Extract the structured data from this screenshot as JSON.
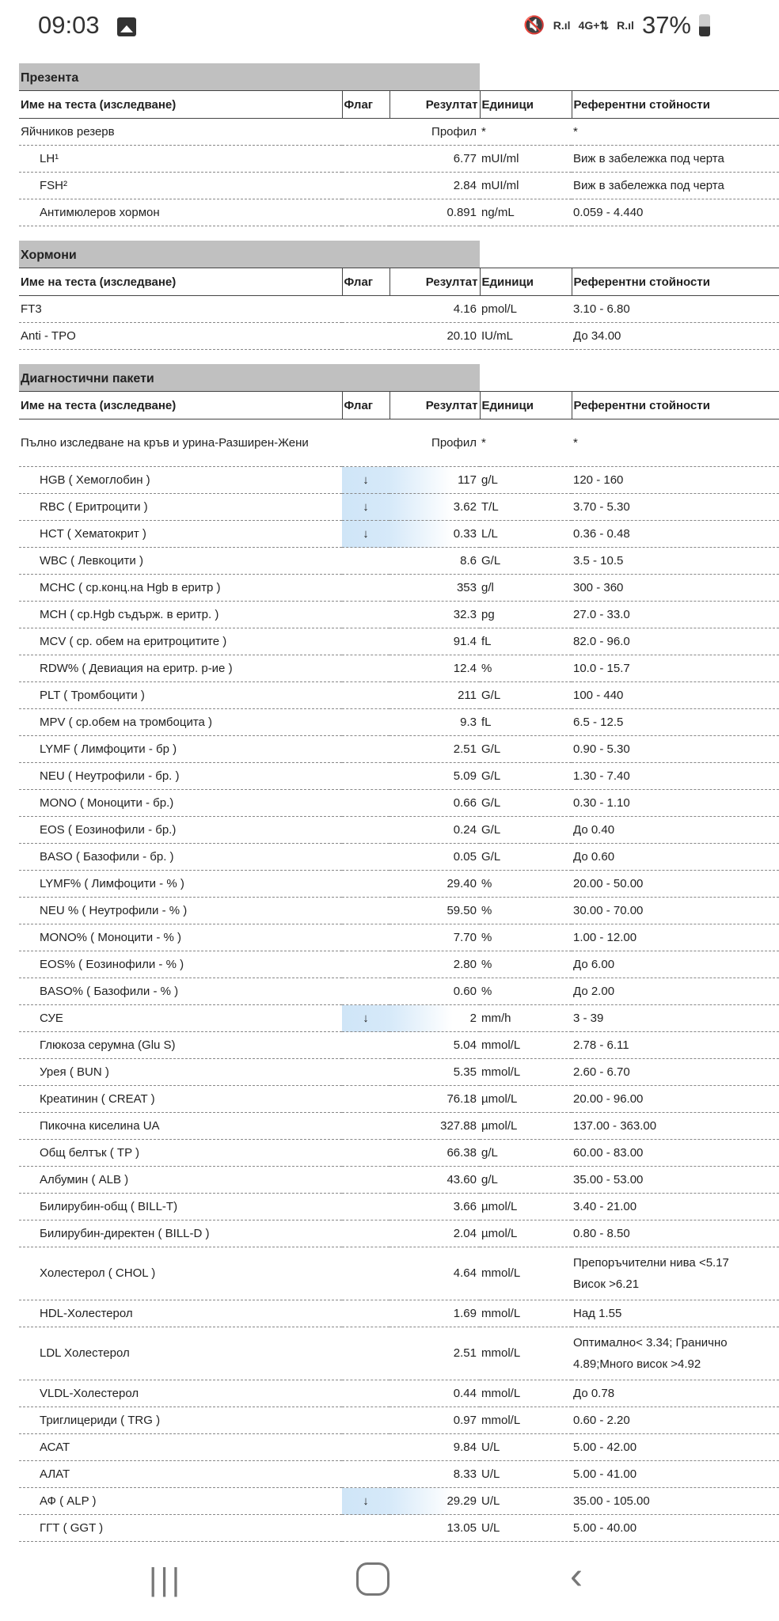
{
  "status_bar": {
    "time": "09:03",
    "battery": "37%",
    "network": "4G+",
    "signal_label": "R"
  },
  "columns": {
    "name": "Име на теста (изследване)",
    "flag": "Флаг",
    "result": "Резултат",
    "units": "Единици",
    "ref": "Референтни стойности"
  },
  "sections": [
    {
      "title": "Презента",
      "rows": [
        {
          "name": "Яйчников резерв",
          "flag": "",
          "result": "Профил",
          "units": "*",
          "ref": "*",
          "indent": false
        },
        {
          "name": "LH¹",
          "flag": "",
          "result": "6.77",
          "units": "mUI/ml",
          "ref": "Виж в забележка под черта",
          "indent": true
        },
        {
          "name": "FSH²",
          "flag": "",
          "result": "2.84",
          "units": "mUI/ml",
          "ref": "Виж в забележка под черта",
          "indent": true
        },
        {
          "name": "Антимюлеров хормон",
          "flag": "",
          "result": "0.891",
          "units": "ng/mL",
          "ref": "0.059 - 4.440",
          "indent": true
        }
      ]
    },
    {
      "title": "Хормони",
      "rows": [
        {
          "name": "FT3",
          "flag": "",
          "result": "4.16",
          "units": "pmol/L",
          "ref": "3.10 - 6.80",
          "indent": false
        },
        {
          "name": "Anti - TPO",
          "flag": "",
          "result": "20.10",
          "units": "IU/mL",
          "ref": "До 34.00",
          "indent": false
        }
      ]
    },
    {
      "title": "Диагностични пакети",
      "rows": [
        {
          "name": "Пълно изследване на кръв и урина-Разширен-Жени",
          "flag": "",
          "result": "Профил",
          "units": "*",
          "ref": "*",
          "indent": false
        },
        {
          "name": "HGB ( Хемоглобин )",
          "flag": "↓",
          "result": "117",
          "units": "g/L",
          "ref": "120 - 160",
          "indent": true
        },
        {
          "name": "RBC ( Еритроцити )",
          "flag": "↓",
          "result": "3.62",
          "units": "T/L",
          "ref": "3.70 - 5.30",
          "indent": true
        },
        {
          "name": "HCT ( Хематокрит )",
          "flag": "↓",
          "result": "0.33",
          "units": "L/L",
          "ref": "0.36 - 0.48",
          "indent": true
        },
        {
          "name": "WBC ( Левкоцити )",
          "flag": "",
          "result": "8.6",
          "units": "G/L",
          "ref": "3.5 - 10.5",
          "indent": true
        },
        {
          "name": "MCHC ( ср.конц.на Hgb в еритр )",
          "flag": "",
          "result": "353",
          "units": "g/l",
          "ref": "300 - 360",
          "indent": true
        },
        {
          "name": "MCH ( ср.Hgb съдърж. в еритр. )",
          "flag": "",
          "result": "32.3",
          "units": "pg",
          "ref": "27.0 - 33.0",
          "indent": true
        },
        {
          "name": "MCV ( ср. обем на еритроцитите )",
          "flag": "",
          "result": "91.4",
          "units": "fL",
          "ref": "82.0 - 96.0",
          "indent": true
        },
        {
          "name": "RDW% ( Девиация на еритр. р-ие )",
          "flag": "",
          "result": "12.4",
          "units": "%",
          "ref": "10.0 - 15.7",
          "indent": true
        },
        {
          "name": "PLT ( Тромбоцити )",
          "flag": "",
          "result": "211",
          "units": "G/L",
          "ref": "100 - 440",
          "indent": true
        },
        {
          "name": "MPV ( ср.обем на тромбоцита )",
          "flag": "",
          "result": "9.3",
          "units": "fL",
          "ref": "6.5 - 12.5",
          "indent": true
        },
        {
          "name": "LYMF ( Лимфоцити - бр )",
          "flag": "",
          "result": "2.51",
          "units": "G/L",
          "ref": "0.90 - 5.30",
          "indent": true
        },
        {
          "name": "NEU ( Неутрофили - бр. )",
          "flag": "",
          "result": "5.09",
          "units": "G/L",
          "ref": "1.30 - 7.40",
          "indent": true
        },
        {
          "name": "MONO ( Моноцити - бр.)",
          "flag": "",
          "result": "0.66",
          "units": "G/L",
          "ref": "0.30 - 1.10",
          "indent": true
        },
        {
          "name": "EOS ( Еозинофили - бр.)",
          "flag": "",
          "result": "0.24",
          "units": "G/L",
          "ref": "До 0.40",
          "indent": true
        },
        {
          "name": "BASO ( Базофили - бр. )",
          "flag": "",
          "result": "0.05",
          "units": "G/L",
          "ref": "До 0.60",
          "indent": true
        },
        {
          "name": "LYMF% ( Лимфоцити - % )",
          "flag": "",
          "result": "29.40",
          "units": "%",
          "ref": "20.00 - 50.00",
          "indent": true
        },
        {
          "name": "NEU % ( Неутрофили - % )",
          "flag": "",
          "result": "59.50",
          "units": "%",
          "ref": "30.00 - 70.00",
          "indent": true
        },
        {
          "name": "MONO% ( Моноцити - % )",
          "flag": "",
          "result": "7.70",
          "units": "%",
          "ref": "1.00 - 12.00",
          "indent": true
        },
        {
          "name": "EOS% ( Еозинофили - % )",
          "flag": "",
          "result": "2.80",
          "units": "%",
          "ref": "До 6.00",
          "indent": true
        },
        {
          "name": "BASO% ( Базофили - % )",
          "flag": "",
          "result": "0.60",
          "units": "%",
          "ref": "До 2.00",
          "indent": true
        },
        {
          "name": "СУЕ",
          "flag": "↓",
          "result": "2",
          "units": "mm/h",
          "ref": "3 - 39",
          "indent": true
        },
        {
          "name": "Глюкоза серумна (Glu S)",
          "flag": "",
          "result": "5.04",
          "units": "mmol/L",
          "ref": "2.78 - 6.11",
          "indent": true
        },
        {
          "name": "Урея ( BUN )",
          "flag": "",
          "result": "5.35",
          "units": "mmol/L",
          "ref": "2.60 - 6.70",
          "indent": true
        },
        {
          "name": "Креатинин ( CREAT )",
          "flag": "",
          "result": "76.18",
          "units": "µmol/L",
          "ref": "20.00 - 96.00",
          "indent": true
        },
        {
          "name": "Пикочна киселина UA",
          "flag": "",
          "result": "327.88",
          "units": "µmol/L",
          "ref": "137.00 - 363.00",
          "indent": true
        },
        {
          "name": "Общ белтък ( TP )",
          "flag": "",
          "result": "66.38",
          "units": "g/L",
          "ref": "60.00 - 83.00",
          "indent": true
        },
        {
          "name": "Албумин ( ALB )",
          "flag": "",
          "result": "43.60",
          "units": "g/L",
          "ref": "35.00 - 53.00",
          "indent": true
        },
        {
          "name": "Билирубин-общ ( BILL-T)",
          "flag": "",
          "result": "3.66",
          "units": "µmol/L",
          "ref": "3.40 - 21.00",
          "indent": true
        },
        {
          "name": "Билирубин-директен ( BILL-D )",
          "flag": "",
          "result": "2.04",
          "units": "µmol/L",
          "ref": "0.80 - 8.50",
          "indent": true
        },
        {
          "name": "Холестерол ( CHOL )",
          "flag": "",
          "result": "4.64",
          "units": "mmol/L",
          "ref": "Препоръчителни нива <5.17 Висок >6.21",
          "indent": true
        },
        {
          "name": "HDL-Холестерол",
          "flag": "",
          "result": "1.69",
          "units": "mmol/L",
          "ref": "Над 1.55",
          "indent": true
        },
        {
          "name": "LDL Холестерол",
          "flag": "",
          "result": "2.51",
          "units": "mmol/L",
          "ref": "Оптимално< 3.34; Гранично 4.89;Много висок >4.92",
          "indent": true
        },
        {
          "name": "VLDL-Холестерол",
          "flag": "",
          "result": "0.44",
          "units": "mmol/L",
          "ref": "До 0.78",
          "indent": true
        },
        {
          "name": "Триглицериди ( TRG )",
          "flag": "",
          "result": "0.97",
          "units": "mmol/L",
          "ref": "0.60 - 2.20",
          "indent": true
        },
        {
          "name": "АСАТ",
          "flag": "",
          "result": "9.84",
          "units": "U/L",
          "ref": "5.00 - 42.00",
          "indent": true
        },
        {
          "name": "АЛАТ",
          "flag": "",
          "result": "8.33",
          "units": "U/L",
          "ref": "5.00 - 41.00",
          "indent": true
        },
        {
          "name": "АФ ( ALP )",
          "flag": "↓",
          "result": "29.29",
          "units": "U/L",
          "ref": "35.00 - 105.00",
          "indent": true
        },
        {
          "name": "ГГТ ( GGT )",
          "flag": "",
          "result": "13.05",
          "units": "U/L",
          "ref": "5.00 - 40.00",
          "indent": true
        }
      ]
    }
  ],
  "colors": {
    "section_bg": "#c0c0c0",
    "flag_low_bg": "#cfe5f7"
  }
}
